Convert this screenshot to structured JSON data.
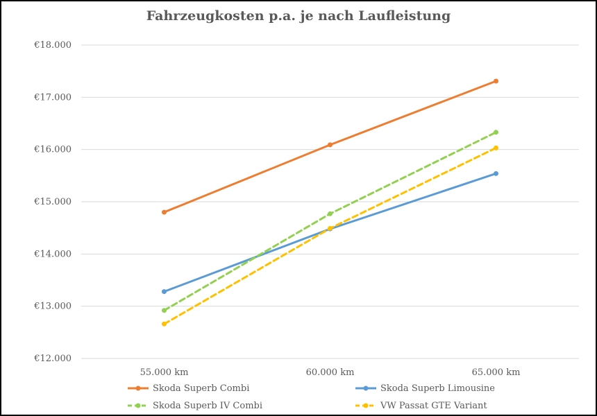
{
  "chart_data": {
    "type": "line",
    "title": "Fahrzeugkosten p.a. je nach Laufleistung",
    "categories": [
      "55.000 km",
      "60.000 km",
      "65.000 km"
    ],
    "ylim": [
      12000,
      18000
    ],
    "yticks": [
      "€12.000",
      "€13.000",
      "€14.000",
      "€15.000",
      "€16.000",
      "€17.000",
      "€18.000"
    ],
    "grid": true,
    "legend_position": "bottom",
    "series": [
      {
        "name": "Skoda Superb Combi",
        "values": [
          14800,
          16090,
          17310
        ],
        "color": "#ED7D31",
        "dash": "solid"
      },
      {
        "name": "Skoda Superb Limousine",
        "values": [
          13280,
          14480,
          15540
        ],
        "color": "#5B9BD5",
        "dash": "solid"
      },
      {
        "name": "Skoda Superb IV Combi",
        "values": [
          12920,
          14770,
          16330
        ],
        "color": "#92D050",
        "dash": "dashed"
      },
      {
        "name": "VW Passat GTE Variant",
        "values": [
          12660,
          14490,
          16030
        ],
        "color": "#FFC000",
        "dash": "dashed"
      }
    ]
  }
}
